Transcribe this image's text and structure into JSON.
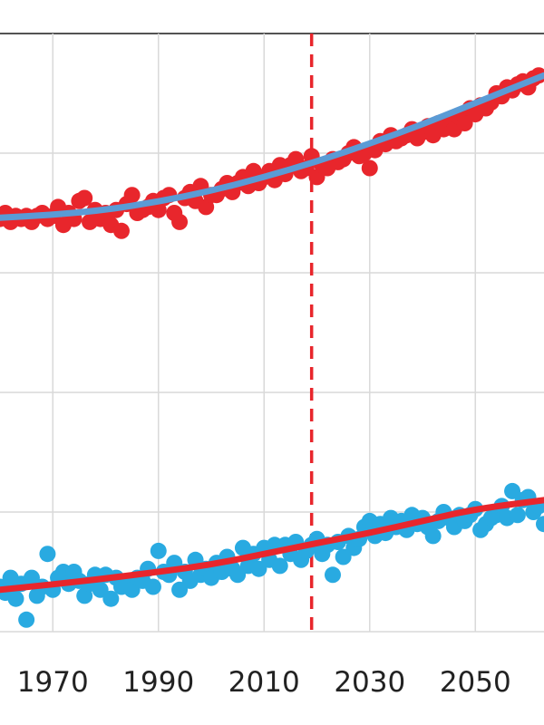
{
  "chart_data": {
    "type": "scatter",
    "title": "",
    "xlabel": "",
    "ylabel": "",
    "xlim": [
      1960,
      2063
    ],
    "ylim": [
      0,
      10
    ],
    "x_ticks": [
      1970,
      1990,
      2010,
      2030,
      2050
    ],
    "x_tick_labels": [
      "1970",
      "1990",
      "2010",
      "2030",
      "2050"
    ],
    "y_gridlines": [
      0,
      2,
      4,
      6,
      8,
      10
    ],
    "grid": true,
    "legend": "none",
    "reference_line": {
      "x": 2019,
      "style": "dashed",
      "color": "#e8262c"
    },
    "series": [
      {
        "kind": "points",
        "color": "#e8262c",
        "points": [
          [
            1960,
            6.9
          ],
          [
            1961,
            7.0
          ],
          [
            1962,
            6.85
          ],
          [
            1963,
            6.95
          ],
          [
            1964,
            6.9
          ],
          [
            1965,
            6.95
          ],
          [
            1966,
            6.85
          ],
          [
            1967,
            6.95
          ],
          [
            1968,
            7.0
          ],
          [
            1969,
            6.9
          ],
          [
            1970,
            6.95
          ],
          [
            1971,
            7.1
          ],
          [
            1972,
            6.8
          ],
          [
            1973,
            7.0
          ],
          [
            1974,
            6.9
          ],
          [
            1975,
            7.2
          ],
          [
            1976,
            7.25
          ],
          [
            1977,
            6.85
          ],
          [
            1978,
            7.05
          ],
          [
            1979,
            6.9
          ],
          [
            1980,
            7.0
          ],
          [
            1981,
            6.8
          ],
          [
            1982,
            7.05
          ],
          [
            1983,
            6.7
          ],
          [
            1984,
            7.15
          ],
          [
            1985,
            7.3
          ],
          [
            1986,
            7.0
          ],
          [
            1987,
            7.05
          ],
          [
            1988,
            7.1
          ],
          [
            1989,
            7.2
          ],
          [
            1990,
            7.05
          ],
          [
            1991,
            7.25
          ],
          [
            1992,
            7.3
          ],
          [
            1993,
            7.0
          ],
          [
            1994,
            6.85
          ],
          [
            1995,
            7.25
          ],
          [
            1996,
            7.35
          ],
          [
            1997,
            7.2
          ],
          [
            1998,
            7.45
          ],
          [
            1999,
            7.1
          ],
          [
            2000,
            7.3
          ],
          [
            2001,
            7.3
          ],
          [
            2002,
            7.4
          ],
          [
            2003,
            7.5
          ],
          [
            2004,
            7.35
          ],
          [
            2005,
            7.5
          ],
          [
            2006,
            7.6
          ],
          [
            2007,
            7.45
          ],
          [
            2008,
            7.7
          ],
          [
            2009,
            7.5
          ],
          [
            2010,
            7.6
          ],
          [
            2011,
            7.7
          ],
          [
            2012,
            7.55
          ],
          [
            2013,
            7.8
          ],
          [
            2014,
            7.65
          ],
          [
            2015,
            7.8
          ],
          [
            2016,
            7.9
          ],
          [
            2017,
            7.7
          ],
          [
            2018,
            7.75
          ],
          [
            2019,
            7.95
          ],
          [
            2020,
            7.6
          ],
          [
            2021,
            7.8
          ],
          [
            2022,
            7.75
          ],
          [
            2023,
            7.9
          ],
          [
            2024,
            7.85
          ],
          [
            2025,
            7.9
          ],
          [
            2026,
            8.0
          ],
          [
            2027,
            8.1
          ],
          [
            2028,
            7.95
          ],
          [
            2029,
            8.0
          ],
          [
            2030,
            7.75
          ],
          [
            2031,
            8.05
          ],
          [
            2032,
            8.2
          ],
          [
            2033,
            8.15
          ],
          [
            2034,
            8.3
          ],
          [
            2035,
            8.2
          ],
          [
            2036,
            8.25
          ],
          [
            2037,
            8.3
          ],
          [
            2038,
            8.4
          ],
          [
            2039,
            8.25
          ],
          [
            2040,
            8.35
          ],
          [
            2041,
            8.45
          ],
          [
            2042,
            8.3
          ],
          [
            2043,
            8.5
          ],
          [
            2044,
            8.4
          ],
          [
            2045,
            8.55
          ],
          [
            2046,
            8.4
          ],
          [
            2047,
            8.6
          ],
          [
            2048,
            8.5
          ],
          [
            2049,
            8.75
          ],
          [
            2050,
            8.65
          ],
          [
            2051,
            8.8
          ],
          [
            2052,
            8.75
          ],
          [
            2053,
            8.85
          ],
          [
            2054,
            9.0
          ],
          [
            2055,
            8.95
          ],
          [
            2056,
            9.1
          ],
          [
            2057,
            9.05
          ],
          [
            2058,
            9.15
          ],
          [
            2059,
            9.2
          ],
          [
            2060,
            9.1
          ],
          [
            2061,
            9.25
          ],
          [
            2062,
            9.3
          ]
        ]
      },
      {
        "kind": "fit",
        "color": "#5b9bd5",
        "curve": [
          [
            1960,
            6.92
          ],
          [
            1970,
            6.97
          ],
          [
            1980,
            7.05
          ],
          [
            1990,
            7.19
          ],
          [
            2000,
            7.37
          ],
          [
            2010,
            7.6
          ],
          [
            2020,
            7.86
          ],
          [
            2030,
            8.16
          ],
          [
            2040,
            8.48
          ],
          [
            2050,
            8.84
          ],
          [
            2063,
            9.3
          ]
        ]
      },
      {
        "kind": "points",
        "color": "#29aae1",
        "points": [
          [
            1960,
            0.75
          ],
          [
            1961,
            0.65
          ],
          [
            1962,
            0.9
          ],
          [
            1963,
            0.55
          ],
          [
            1964,
            0.8
          ],
          [
            1965,
            0.2
          ],
          [
            1966,
            0.9
          ],
          [
            1967,
            0.6
          ],
          [
            1968,
            0.75
          ],
          [
            1969,
            1.3
          ],
          [
            1970,
            0.7
          ],
          [
            1971,
            0.9
          ],
          [
            1972,
            1.0
          ],
          [
            1973,
            0.8
          ],
          [
            1974,
            1.0
          ],
          [
            1975,
            0.85
          ],
          [
            1976,
            0.6
          ],
          [
            1977,
            0.8
          ],
          [
            1978,
            0.95
          ],
          [
            1979,
            0.7
          ],
          [
            1980,
            0.95
          ],
          [
            1981,
            0.55
          ],
          [
            1982,
            0.9
          ],
          [
            1983,
            0.75
          ],
          [
            1984,
            0.8
          ],
          [
            1985,
            0.7
          ],
          [
            1986,
            0.9
          ],
          [
            1987,
            0.85
          ],
          [
            1988,
            1.05
          ],
          [
            1989,
            0.75
          ],
          [
            1990,
            1.35
          ],
          [
            1991,
            1.0
          ],
          [
            1992,
            0.95
          ],
          [
            1993,
            1.15
          ],
          [
            1994,
            0.7
          ],
          [
            1995,
            1.0
          ],
          [
            1996,
            0.85
          ],
          [
            1997,
            1.2
          ],
          [
            1998,
            0.95
          ],
          [
            1999,
            1.05
          ],
          [
            2000,
            0.9
          ],
          [
            2001,
            1.15
          ],
          [
            2002,
            1.0
          ],
          [
            2003,
            1.25
          ],
          [
            2004,
            1.05
          ],
          [
            2005,
            0.95
          ],
          [
            2006,
            1.4
          ],
          [
            2007,
            1.1
          ],
          [
            2008,
            1.3
          ],
          [
            2009,
            1.05
          ],
          [
            2010,
            1.4
          ],
          [
            2011,
            1.2
          ],
          [
            2012,
            1.45
          ],
          [
            2013,
            1.1
          ],
          [
            2014,
            1.45
          ],
          [
            2015,
            1.3
          ],
          [
            2016,
            1.5
          ],
          [
            2017,
            1.2
          ],
          [
            2018,
            1.35
          ],
          [
            2019,
            1.45
          ],
          [
            2020,
            1.55
          ],
          [
            2021,
            1.3
          ],
          [
            2022,
            1.45
          ],
          [
            2023,
            0.95
          ],
          [
            2024,
            1.5
          ],
          [
            2025,
            1.25
          ],
          [
            2026,
            1.6
          ],
          [
            2027,
            1.4
          ],
          [
            2028,
            1.55
          ],
          [
            2029,
            1.75
          ],
          [
            2030,
            1.85
          ],
          [
            2031,
            1.6
          ],
          [
            2032,
            1.8
          ],
          [
            2033,
            1.65
          ],
          [
            2034,
            1.9
          ],
          [
            2035,
            1.75
          ],
          [
            2036,
            1.85
          ],
          [
            2037,
            1.7
          ],
          [
            2038,
            1.95
          ],
          [
            2039,
            1.8
          ],
          [
            2040,
            1.9
          ],
          [
            2041,
            1.75
          ],
          [
            2042,
            1.6
          ],
          [
            2043,
            1.85
          ],
          [
            2044,
            2.0
          ],
          [
            2045,
            1.9
          ],
          [
            2046,
            1.75
          ],
          [
            2047,
            1.95
          ],
          [
            2048,
            1.85
          ],
          [
            2049,
            1.95
          ],
          [
            2050,
            2.05
          ],
          [
            2051,
            1.7
          ],
          [
            2052,
            1.8
          ],
          [
            2053,
            1.9
          ],
          [
            2054,
            1.95
          ],
          [
            2055,
            2.1
          ],
          [
            2056,
            1.9
          ],
          [
            2057,
            2.35
          ],
          [
            2058,
            1.95
          ],
          [
            2059,
            2.2
          ],
          [
            2060,
            2.25
          ],
          [
            2061,
            2.0
          ],
          [
            2062,
            2.1
          ],
          [
            2063,
            1.8
          ]
        ]
      },
      {
        "kind": "fit",
        "color": "#e8262c",
        "curve": [
          [
            1960,
            0.7
          ],
          [
            1970,
            0.79
          ],
          [
            1980,
            0.89
          ],
          [
            1990,
            1.0
          ],
          [
            2000,
            1.12
          ],
          [
            2010,
            1.3
          ],
          [
            2020,
            1.48
          ],
          [
            2030,
            1.65
          ],
          [
            2040,
            1.85
          ],
          [
            2050,
            2.05
          ],
          [
            2063,
            2.2
          ]
        ]
      }
    ]
  }
}
